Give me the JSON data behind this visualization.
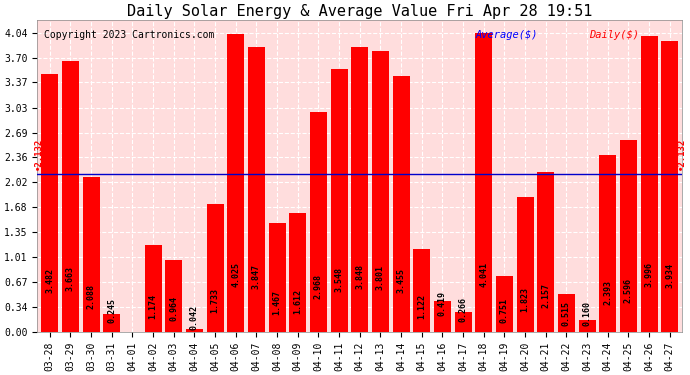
{
  "title": "Daily Solar Energy & Average Value Fri Apr 28 19:51",
  "copyright": "Copyright 2023 Cartronics.com",
  "legend_avg": "Average($)",
  "legend_daily": "Daily($)",
  "average_value": 2.132,
  "categories": [
    "03-28",
    "03-29",
    "03-30",
    "03-31",
    "04-01",
    "04-02",
    "04-03",
    "04-04",
    "04-05",
    "04-06",
    "04-07",
    "04-08",
    "04-09",
    "04-10",
    "04-11",
    "04-12",
    "04-13",
    "04-14",
    "04-15",
    "04-16",
    "04-17",
    "04-18",
    "04-19",
    "04-20",
    "04-21",
    "04-22",
    "04-23",
    "04-24",
    "04-25",
    "04-26",
    "04-27"
  ],
  "values": [
    3.482,
    3.663,
    2.088,
    0.245,
    0.0,
    1.174,
    0.964,
    0.042,
    1.733,
    4.025,
    3.847,
    1.467,
    1.612,
    2.968,
    3.548,
    3.848,
    3.801,
    3.455,
    1.122,
    0.419,
    0.266,
    4.041,
    0.751,
    1.823,
    2.157,
    0.515,
    0.16,
    2.393,
    2.596,
    3.996,
    3.934
  ],
  "bar_color": "#ff0000",
  "avg_line_color": "#0000cc",
  "avg_label_color": "#ff0000",
  "grid_color": "#ffffff",
  "plot_bg_color": "#ff0000",
  "fig_bg_color": "#ffffff",
  "ylim": [
    0.0,
    4.21
  ],
  "yticks": [
    0.0,
    0.34,
    0.67,
    1.01,
    1.35,
    1.68,
    2.02,
    2.36,
    2.69,
    3.03,
    3.37,
    3.7,
    4.04
  ],
  "title_fontsize": 11,
  "tick_fontsize": 7,
  "val_label_fontsize": 6,
  "avg_label_fontsize": 6.5,
  "copyright_fontsize": 7,
  "legend_fontsize": 7.5
}
